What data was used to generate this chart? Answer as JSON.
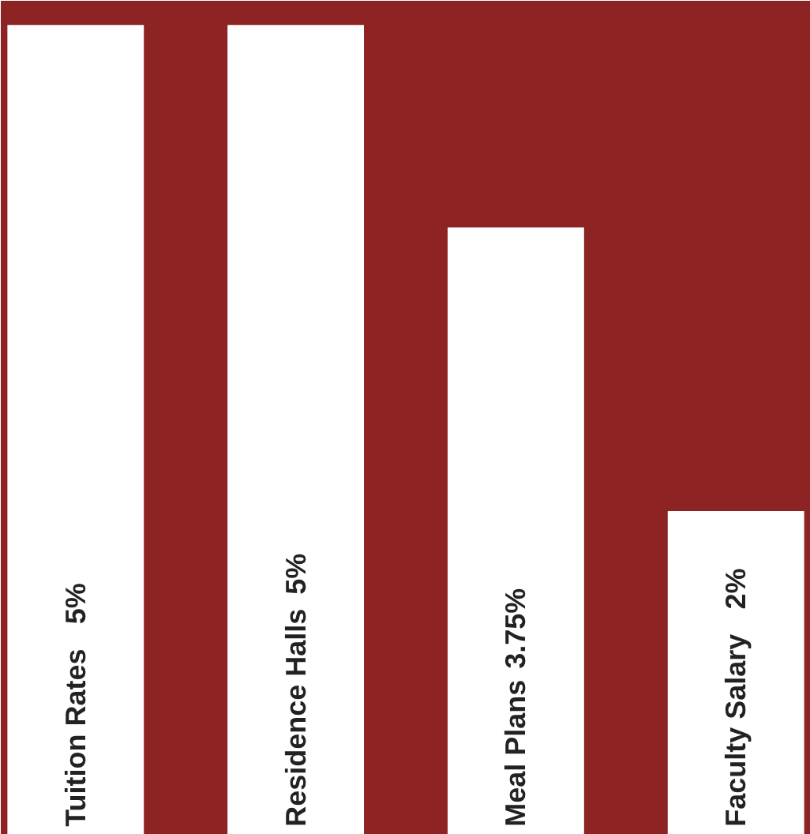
{
  "chart_data": {
    "type": "bar",
    "categories": [
      "Tuition Rates",
      "Residence Halls",
      "Meal Plans",
      "Faculty Salary"
    ],
    "values": [
      5,
      5,
      3.75,
      2
    ],
    "value_labels": [
      "5%",
      "5%",
      "3.75%",
      "2%"
    ],
    "color": "#ffffff",
    "tick_labels": false
  }
}
